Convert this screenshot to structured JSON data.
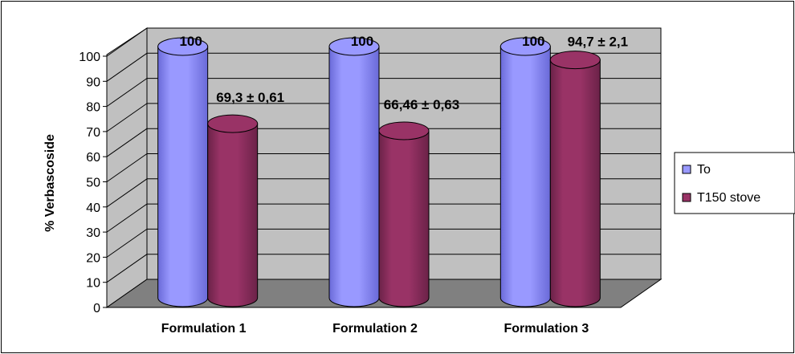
{
  "chart_data": {
    "type": "bar",
    "style": "3d-cylinder",
    "categories": [
      "Formulation 1",
      "Formulation 2",
      "Formulation 3"
    ],
    "series": [
      {
        "name": "To",
        "values": [
          100,
          100,
          100
        ],
        "labels": [
          "100",
          "100",
          "100"
        ],
        "color": "#9999ff",
        "color_dark": "#6a6ad8"
      },
      {
        "name": "T150 stove",
        "values": [
          69.3,
          66.46,
          94.7
        ],
        "labels": [
          "69,3 ± 0,61",
          "66,46 ± 0,63",
          "94,7 ± 2,1"
        ],
        "color": "#993366",
        "color_dark": "#6b2248"
      }
    ],
    "title": "",
    "xlabel": "",
    "ylabel": "% Verbascoside",
    "ylim": [
      0,
      100
    ],
    "yticks": [
      0,
      10,
      20,
      30,
      40,
      50,
      60,
      70,
      80,
      90,
      100
    ],
    "grid": true,
    "legend_position": "right",
    "wall_color": "#c0c0c0",
    "floor_color": "#808080"
  }
}
